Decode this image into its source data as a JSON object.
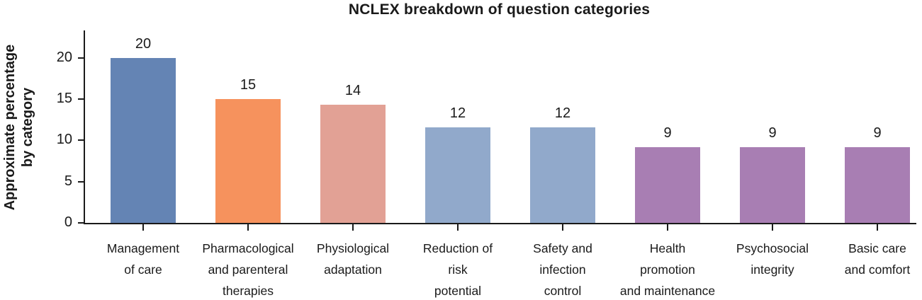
{
  "chart_data": {
    "type": "bar",
    "title": "NCLEX breakdown of question categories",
    "ylabel": "Approximate percentage by category",
    "ylabel_lines": [
      "Approximate percentage",
      "by category"
    ],
    "xlabel": "",
    "categories": [
      "Management of care",
      "Pharmacological and parenteral therapies",
      "Physiological adaptation",
      "Reduction of risk potential",
      "Safety and infection control",
      "Health promotion and maintenance",
      "Psychosocial integrity",
      "Basic care and comfort"
    ],
    "category_label_lines": [
      [
        "Management",
        "of care"
      ],
      [
        "Pharmacological",
        "and parenteral",
        "therapies"
      ],
      [
        "Physiological",
        "adaptation"
      ],
      [
        "Reduction of",
        "risk",
        "potential"
      ],
      [
        "Safety and",
        "infection",
        "control"
      ],
      [
        "Health",
        "promotion",
        "and maintenance"
      ],
      [
        "Psychosocial",
        "integrity"
      ],
      [
        "Basic care",
        "and comfort"
      ]
    ],
    "values": [
      20,
      15,
      14,
      12,
      12,
      9,
      9,
      9
    ],
    "value_labels": [
      "20",
      "15",
      "14",
      "12",
      "12",
      "9",
      "9",
      "9"
    ],
    "bar_heights_as_drawn": [
      20,
      15,
      14.3,
      11.6,
      11.6,
      9.2,
      9.2,
      9.2
    ],
    "bar_colors": [
      "#6484b4",
      "#f6925d",
      "#e2a195",
      "#91a9cb",
      "#91a9cb",
      "#a87eb3",
      "#a87eb3",
      "#a87eb3"
    ],
    "y_ticks": [
      0,
      5,
      10,
      15,
      20
    ],
    "ylim": [
      0,
      23.3
    ],
    "grid": false,
    "legend": "none",
    "axis_color": "#1a1a1a",
    "text_color": "#1a1a1a",
    "background_color": "#ffffff"
  }
}
